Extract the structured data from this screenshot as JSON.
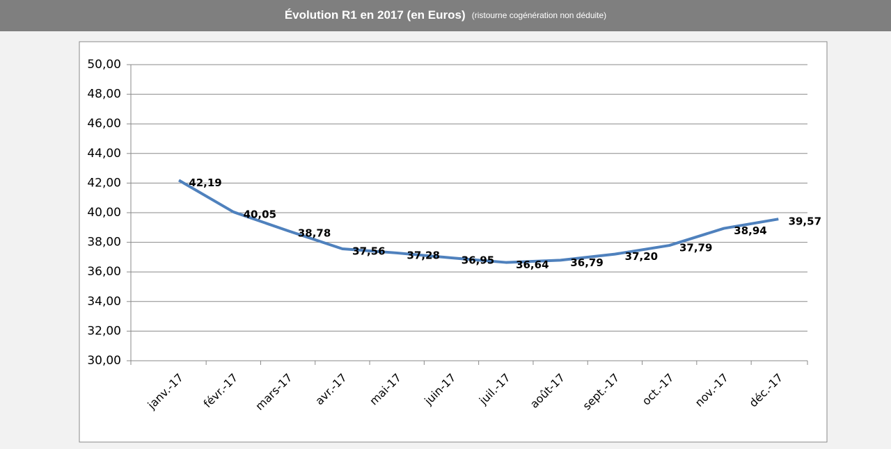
{
  "chart_data": {
    "type": "line",
    "title": "Évolution R1 en 2017 (en Euros)",
    "subtitle": "(ristourne cogénération non déduite)",
    "categories": [
      "janv.-17",
      "févr.-17",
      "mars-17",
      "avr.-17",
      "mai-17",
      "juin-17",
      "juil.-17",
      "août-17",
      "sept.-17",
      "oct.-17",
      "nov.-17",
      "déc.-17"
    ],
    "series": [
      {
        "name": "R1",
        "color": "#4f81bd",
        "values": [
          42.19,
          40.05,
          38.78,
          37.56,
          37.28,
          36.95,
          36.64,
          36.79,
          37.2,
          37.79,
          38.94,
          39.57
        ],
        "value_labels": [
          "42,19",
          "40,05",
          "38,78",
          "37,56",
          "37,28",
          "36,95",
          "36,64",
          "36,79",
          "37,20",
          "37,79",
          "38,94",
          "39,57"
        ]
      }
    ],
    "ylim": [
      30,
      50
    ],
    "yticks": [
      {
        "value": 30,
        "label": "30,00"
      },
      {
        "value": 32,
        "label": "32,00"
      },
      {
        "value": 34,
        "label": "34,00"
      },
      {
        "value": 36,
        "label": "36,00"
      },
      {
        "value": 38,
        "label": "38,00"
      },
      {
        "value": 40,
        "label": "40,00"
      },
      {
        "value": 42,
        "label": "42,00"
      },
      {
        "value": 44,
        "label": "44,00"
      },
      {
        "value": 46,
        "label": "46,00"
      },
      {
        "value": 48,
        "label": "48,00"
      },
      {
        "value": 50,
        "label": "50,00"
      }
    ],
    "grid": true
  }
}
